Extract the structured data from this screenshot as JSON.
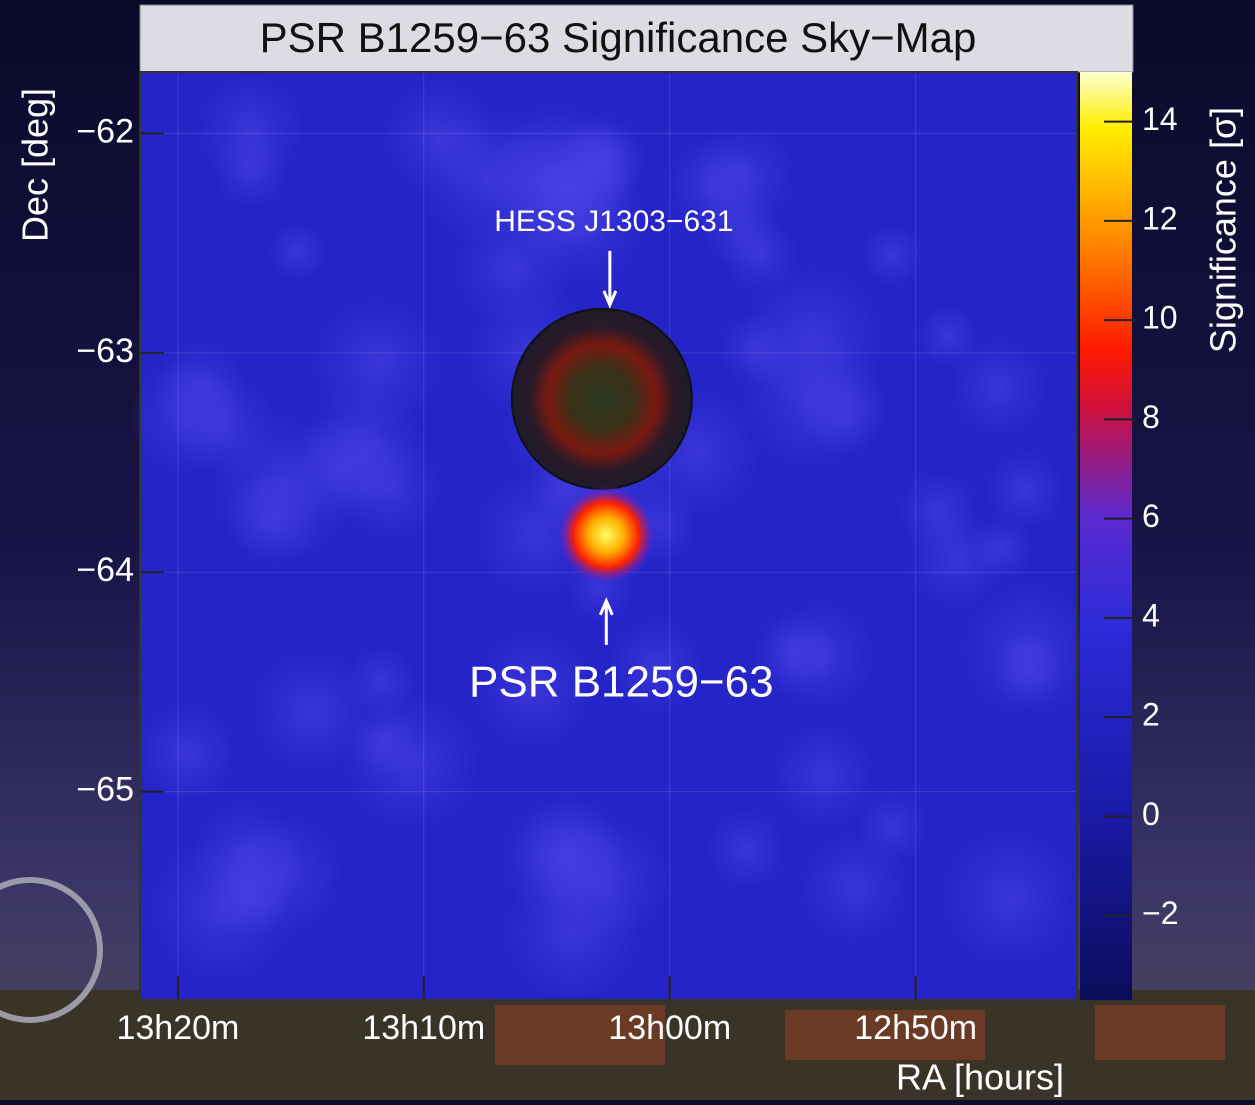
{
  "chart_data": {
    "type": "skymap",
    "title": "PSR B1259−63 Significance Sky−Map",
    "x_label": "RA [hours]",
    "y_label": "Dec [deg]",
    "colorbar_label": "Significance [σ]",
    "xlim": [
      13.359,
      12.724
    ],
    "xticks": [
      {
        "value": 13.3333,
        "label": "13h20m"
      },
      {
        "value": 13.1667,
        "label": "13h10m"
      },
      {
        "value": 13.0,
        "label": "13h00m"
      },
      {
        "value": 12.8333,
        "label": "12h50m"
      }
    ],
    "ylim": [
      -65.95,
      -61.72
    ],
    "yticks": [
      {
        "value": -62,
        "label": "−62"
      },
      {
        "value": -63,
        "label": "−63"
      },
      {
        "value": -64,
        "label": "−64"
      },
      {
        "value": -65,
        "label": "−65"
      }
    ],
    "clim": [
      -3.7,
      15
    ],
    "cticks": [
      {
        "value": -2,
        "label": "−2"
      },
      0,
      2,
      4,
      6,
      8,
      10,
      12,
      14
    ],
    "grid": true,
    "sources": [
      {
        "label": "HESS J1303−631",
        "ra": 13.046,
        "dec": -63.21,
        "peak": 10
      },
      {
        "label": "PSR B1259−63",
        "ra": 13.043,
        "dec": -63.83,
        "peak": 14
      }
    ]
  }
}
